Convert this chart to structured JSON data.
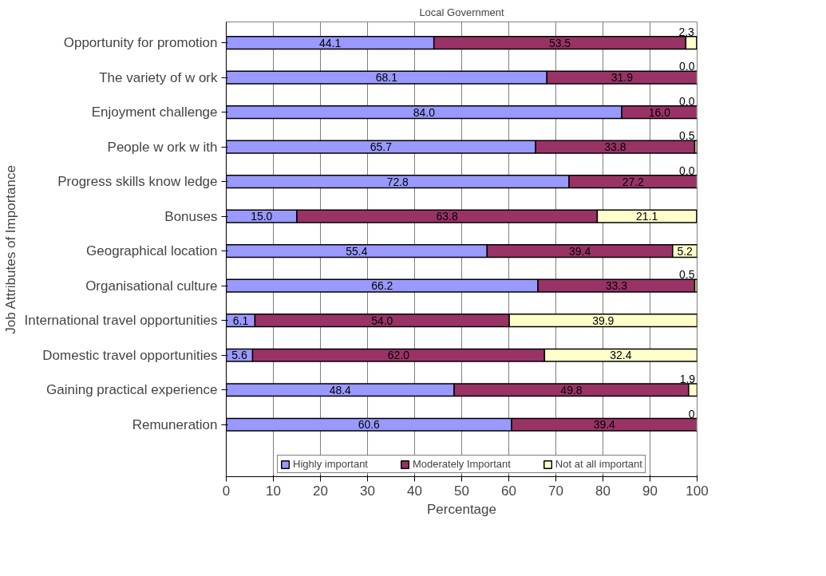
{
  "chart_data": {
    "type": "bar",
    "orientation": "horizontal",
    "stacked": true,
    "title": "Local Government",
    "xlabel": "Percentage",
    "ylabel": "Job Attributes of Importance",
    "categories": [
      "Opportunity for promotion",
      "The variety of w ork",
      "Enjoyment challenge",
      "People w ork w ith",
      "Progress skills know ledge",
      "Bonuses",
      "Geographical location",
      "Organisational culture",
      "International travel opportunities",
      "Domestic travel opportunities",
      "Gaining practical experience",
      "Remuneration"
    ],
    "series": [
      {
        "name": "Highly important",
        "color": "#9999ff",
        "values": [
          44.1,
          68.1,
          84.0,
          65.7,
          72.8,
          15.0,
          55.4,
          66.2,
          6.1,
          5.6,
          48.4,
          60.6
        ],
        "value_labels": [
          "44.1",
          "68.1",
          "84.0",
          "65.7",
          "72.8",
          "15.0",
          "55.4",
          "66.2",
          "6.1",
          "5.6",
          "48.4",
          "60.6"
        ]
      },
      {
        "name": "Moderately Important",
        "color": "#993366",
        "values": [
          53.5,
          31.9,
          16.0,
          33.8,
          27.2,
          63.8,
          39.4,
          33.3,
          54.0,
          62.0,
          49.8,
          39.4
        ],
        "value_labels": [
          "53.5",
          "31.9",
          "16.0",
          "33.8",
          "27.2",
          "63.8",
          "39.4",
          "33.3",
          "54.0",
          "62.0",
          "49.8",
          "39.4"
        ]
      },
      {
        "name": "Not at all important",
        "color": "#ffffcc",
        "values": [
          2.3,
          0.0,
          0.0,
          0.5,
          0.0,
          21.1,
          5.2,
          0.5,
          39.9,
          32.4,
          1.9,
          0
        ],
        "value_labels": [
          "2.3",
          "0.0",
          "0.0",
          "0.5",
          "0.0",
          "21.1",
          "5.2",
          "0.5",
          "39.9",
          "32.4",
          "1.9",
          "0"
        ]
      }
    ],
    "xlim": [
      0,
      100
    ],
    "xticks": [
      0,
      10,
      20,
      30,
      40,
      50,
      60,
      70,
      80,
      90,
      100
    ],
    "grid": "x",
    "legend": "bottom"
  }
}
